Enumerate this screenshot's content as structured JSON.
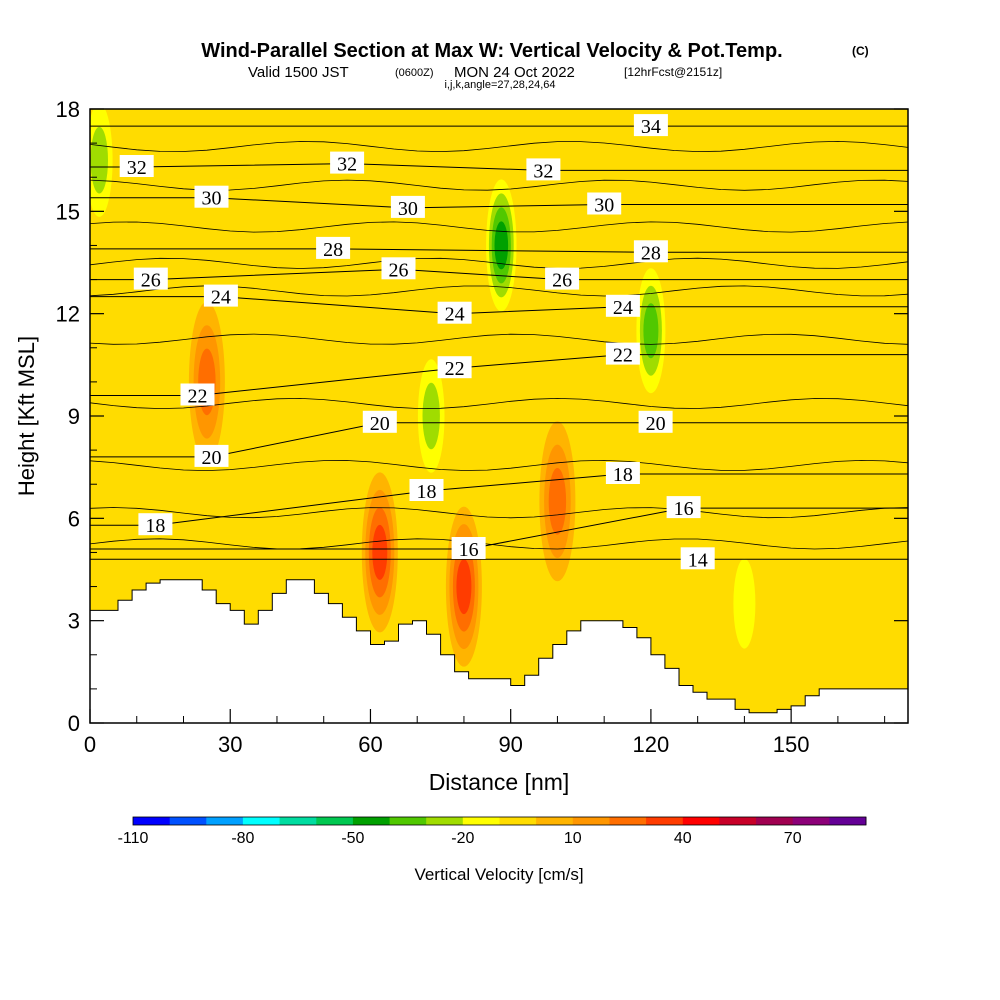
{
  "chart_data": {
    "type": "heatmap",
    "title": "Wind-Parallel Section at Max W: Vertical Velocity & Pot.Temp.",
    "title_mark": "(C)",
    "subtitle_valid": "Valid 1500 JST",
    "subtitle_utc": "(0600Z)",
    "subtitle_date": "MON 24 Oct 2022",
    "subtitle_fcst": "[12hrFcst@2151z]",
    "subtitle_ijk": "i,j,k,angle=27,28,24,64",
    "xlabel": "Distance [nm]",
    "ylabel": "Height [Kft MSL]",
    "xlim": [
      0,
      175
    ],
    "ylim": [
      0,
      18
    ],
    "x_ticks": [
      "0",
      "30",
      "60",
      "90",
      "120",
      "150"
    ],
    "y_ticks": [
      "0",
      "3",
      "6",
      "9",
      "12",
      "15",
      "18"
    ],
    "colorbar": {
      "label": "Vertical Velocity [cm/s]",
      "tick_labels": [
        "-110",
        "-80",
        "-50",
        "-20",
        "10",
        "40",
        "70"
      ],
      "colors": [
        "#0000ff",
        "#0050ff",
        "#00a0ff",
        "#00ffff",
        "#00dca0",
        "#00c850",
        "#00a000",
        "#50c800",
        "#a0dc00",
        "#ffff00",
        "#ffdc00",
        "#ffb400",
        "#ff9600",
        "#ff6e00",
        "#ff3c00",
        "#ff0000",
        "#c80028",
        "#a00050",
        "#8c0078",
        "#640096"
      ]
    },
    "velocity_color_bins": [
      -110,
      -100,
      -90,
      -80,
      -70,
      -60,
      -50,
      -40,
      -30,
      -20,
      -10,
      0,
      10,
      20,
      30,
      40,
      50,
      60,
      70,
      80
    ],
    "velocity_features": [
      {
        "label": "background",
        "x": null,
        "y": null,
        "value_cm_s": -5
      },
      {
        "x": 80,
        "y": 4.0,
        "value_cm_s": 40
      },
      {
        "x": 62,
        "y": 5.0,
        "value_cm_s": 35
      },
      {
        "x": 25,
        "y": 10.0,
        "value_cm_s": 30
      },
      {
        "x": 88,
        "y": 14.0,
        "value_cm_s": -45
      },
      {
        "x": 120,
        "y": 11.5,
        "value_cm_s": -35
      },
      {
        "x": 2,
        "y": 16.5,
        "value_cm_s": -30
      },
      {
        "x": 73,
        "y": 9.0,
        "value_cm_s": -30
      },
      {
        "x": 140,
        "y": 3.5,
        "value_cm_s": -15
      },
      {
        "x": 100,
        "y": 6.5,
        "value_cm_s": 25
      }
    ],
    "pot_temp_contours": {
      "unit": "C",
      "labels": [
        {
          "text": "14",
          "x": 130,
          "y": 4.8
        },
        {
          "text": "16",
          "x": 81,
          "y": 5.1
        },
        {
          "text": "16",
          "x": 127,
          "y": 6.3
        },
        {
          "text": "18",
          "x": 14,
          "y": 5.8
        },
        {
          "text": "18",
          "x": 72,
          "y": 6.8
        },
        {
          "text": "18",
          "x": 114,
          "y": 7.3
        },
        {
          "text": "20",
          "x": 26,
          "y": 7.8
        },
        {
          "text": "20",
          "x": 62,
          "y": 8.8
        },
        {
          "text": "20",
          "x": 121,
          "y": 8.8
        },
        {
          "text": "22",
          "x": 23,
          "y": 9.6
        },
        {
          "text": "22",
          "x": 78,
          "y": 10.4
        },
        {
          "text": "22",
          "x": 114,
          "y": 10.8
        },
        {
          "text": "24",
          "x": 28,
          "y": 12.5
        },
        {
          "text": "24",
          "x": 78,
          "y": 12.0
        },
        {
          "text": "24",
          "x": 114,
          "y": 12.2
        },
        {
          "text": "26",
          "x": 13,
          "y": 13.0
        },
        {
          "text": "26",
          "x": 66,
          "y": 13.3
        },
        {
          "text": "26",
          "x": 101,
          "y": 13.0
        },
        {
          "text": "28",
          "x": 52,
          "y": 13.9
        },
        {
          "text": "28",
          "x": 120,
          "y": 13.8
        },
        {
          "text": "30",
          "x": 26,
          "y": 15.4
        },
        {
          "text": "30",
          "x": 68,
          "y": 15.1
        },
        {
          "text": "30",
          "x": 110,
          "y": 15.2
        },
        {
          "text": "32",
          "x": 10,
          "y": 16.3
        },
        {
          "text": "32",
          "x": 55,
          "y": 16.4
        },
        {
          "text": "32",
          "x": 97,
          "y": 16.2
        },
        {
          "text": "34",
          "x": 120,
          "y": 17.5
        }
      ]
    },
    "terrain_kft": {
      "x": [
        0,
        3,
        6,
        9,
        12,
        15,
        21,
        24,
        27,
        30,
        33,
        36,
        39,
        42,
        45,
        48,
        51,
        54,
        57,
        60,
        63,
        66,
        69,
        72,
        75,
        78,
        81,
        84,
        87,
        90,
        93,
        96,
        99,
        102,
        105,
        108,
        111,
        114,
        117,
        120,
        123,
        126,
        129,
        132,
        135,
        138,
        141,
        144,
        147,
        150,
        153,
        156,
        159,
        162,
        165,
        168,
        171,
        175
      ],
      "height": [
        3.3,
        3.3,
        3.6,
        3.9,
        4.1,
        4.2,
        4.2,
        3.9,
        3.5,
        3.3,
        2.9,
        3.3,
        3.8,
        4.2,
        4.2,
        3.8,
        3.5,
        3.1,
        2.7,
        2.3,
        2.4,
        2.9,
        3.0,
        2.6,
        2.0,
        1.5,
        1.3,
        1.3,
        1.3,
        1.1,
        1.4,
        1.9,
        2.3,
        2.7,
        3.0,
        3.0,
        3.0,
        2.8,
        2.5,
        2.0,
        1.6,
        1.1,
        0.9,
        0.7,
        0.7,
        0.4,
        0.3,
        0.3,
        0.4,
        0.5,
        0.8,
        1.0,
        1.0,
        1.0,
        1.0,
        1.0,
        1.0,
        1.0
      ]
    }
  }
}
